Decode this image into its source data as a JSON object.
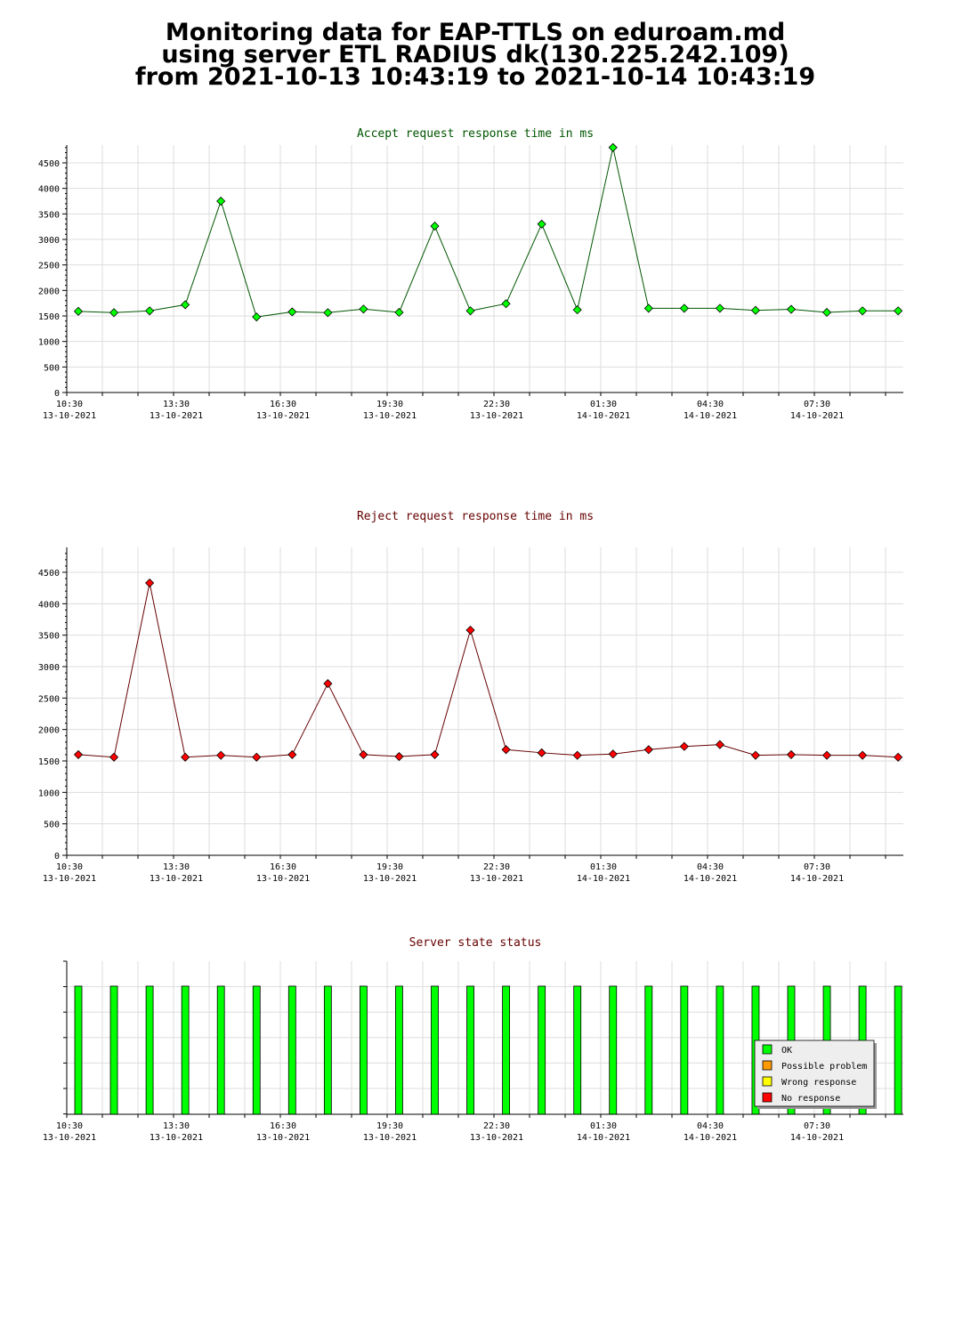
{
  "header": {
    "line1": "Monitoring data for EAP-TTLS on eduroam.md",
    "line2": "using server ETL RADIUS dk(130.225.242.109)",
    "line3": "from 2021-10-13 10:43:19 to 2021-10-14 10:43:19"
  },
  "colors": {
    "accept_title": "#005500",
    "reject_title": "#660000",
    "status_title": "#660000",
    "accept_marker": "#00ff00",
    "reject_marker": "#ff0000",
    "ok": "#00ff00",
    "possible_problem": "#ff9900",
    "wrong_response": "#ffff00",
    "no_response": "#ff0000",
    "grid": "#dddddd"
  },
  "chart_data": [
    {
      "type": "line",
      "title": "Accept request response time in ms",
      "xlabel": "",
      "ylabel": "",
      "x_ticks": [
        {
          "time": "10:30",
          "date": "13-10-2021"
        },
        {
          "time": "13:30",
          "date": "13-10-2021"
        },
        {
          "time": "16:30",
          "date": "13-10-2021"
        },
        {
          "time": "19:30",
          "date": "13-10-2021"
        },
        {
          "time": "22:30",
          "date": "13-10-2021"
        },
        {
          "time": "01:30",
          "date": "14-10-2021"
        },
        {
          "time": "04:30",
          "date": "14-10-2021"
        },
        {
          "time": "07:30",
          "date": "14-10-2021"
        }
      ],
      "y_ticks": [
        0,
        500,
        1000,
        1500,
        2000,
        2500,
        3000,
        3500,
        4000,
        4500
      ],
      "ylim": [
        0,
        4850
      ],
      "grid": true,
      "series": [
        {
          "values": [
            1590,
            1565,
            1600,
            1720,
            3750,
            1480,
            1580,
            1565,
            1635,
            1570,
            3260,
            1600,
            1740,
            3300,
            1620,
            4800,
            1650,
            1650,
            1650,
            1610,
            1630,
            1570,
            1600,
            1600
          ]
        }
      ]
    },
    {
      "type": "line",
      "title": "Reject request response time in ms",
      "xlabel": "",
      "ylabel": "",
      "x_ticks": [
        {
          "time": "10:30",
          "date": "13-10-2021"
        },
        {
          "time": "13:30",
          "date": "13-10-2021"
        },
        {
          "time": "16:30",
          "date": "13-10-2021"
        },
        {
          "time": "19:30",
          "date": "13-10-2021"
        },
        {
          "time": "22:30",
          "date": "13-10-2021"
        },
        {
          "time": "01:30",
          "date": "14-10-2021"
        },
        {
          "time": "04:30",
          "date": "14-10-2021"
        },
        {
          "time": "07:30",
          "date": "14-10-2021"
        }
      ],
      "y_ticks": [
        0,
        500,
        1000,
        1500,
        2000,
        2500,
        3000,
        3500,
        4000,
        4500
      ],
      "ylim": [
        0,
        4880
      ],
      "grid": true,
      "series": [
        {
          "values": [
            1600,
            1560,
            4330,
            1560,
            1590,
            1560,
            1600,
            2730,
            1600,
            1570,
            1600,
            3580,
            1680,
            1630,
            1590,
            1610,
            1680,
            1730,
            1760,
            1590,
            1600,
            1590,
            1590,
            1560
          ]
        }
      ]
    },
    {
      "type": "bar",
      "title": "Server state status",
      "x_ticks": [
        {
          "time": "10:30",
          "date": "13-10-2021"
        },
        {
          "time": "13:30",
          "date": "13-10-2021"
        },
        {
          "time": "16:30",
          "date": "13-10-2021"
        },
        {
          "time": "19:30",
          "date": "13-10-2021"
        },
        {
          "time": "22:30",
          "date": "13-10-2021"
        },
        {
          "time": "01:30",
          "date": "14-10-2021"
        },
        {
          "time": "04:30",
          "date": "14-10-2021"
        },
        {
          "time": "07:30",
          "date": "14-10-2021"
        }
      ],
      "states": [
        "OK",
        "OK",
        "OK",
        "OK",
        "OK",
        "OK",
        "OK",
        "OK",
        "OK",
        "OK",
        "OK",
        "OK",
        "OK",
        "OK",
        "OK",
        "OK",
        "OK",
        "OK",
        "OK",
        "OK",
        "OK",
        "OK",
        "OK",
        "OK"
      ],
      "legend": [
        "OK",
        "Possible problem",
        "Wrong response",
        "No response"
      ],
      "legend_position": "bottom-right",
      "grid": true
    }
  ]
}
